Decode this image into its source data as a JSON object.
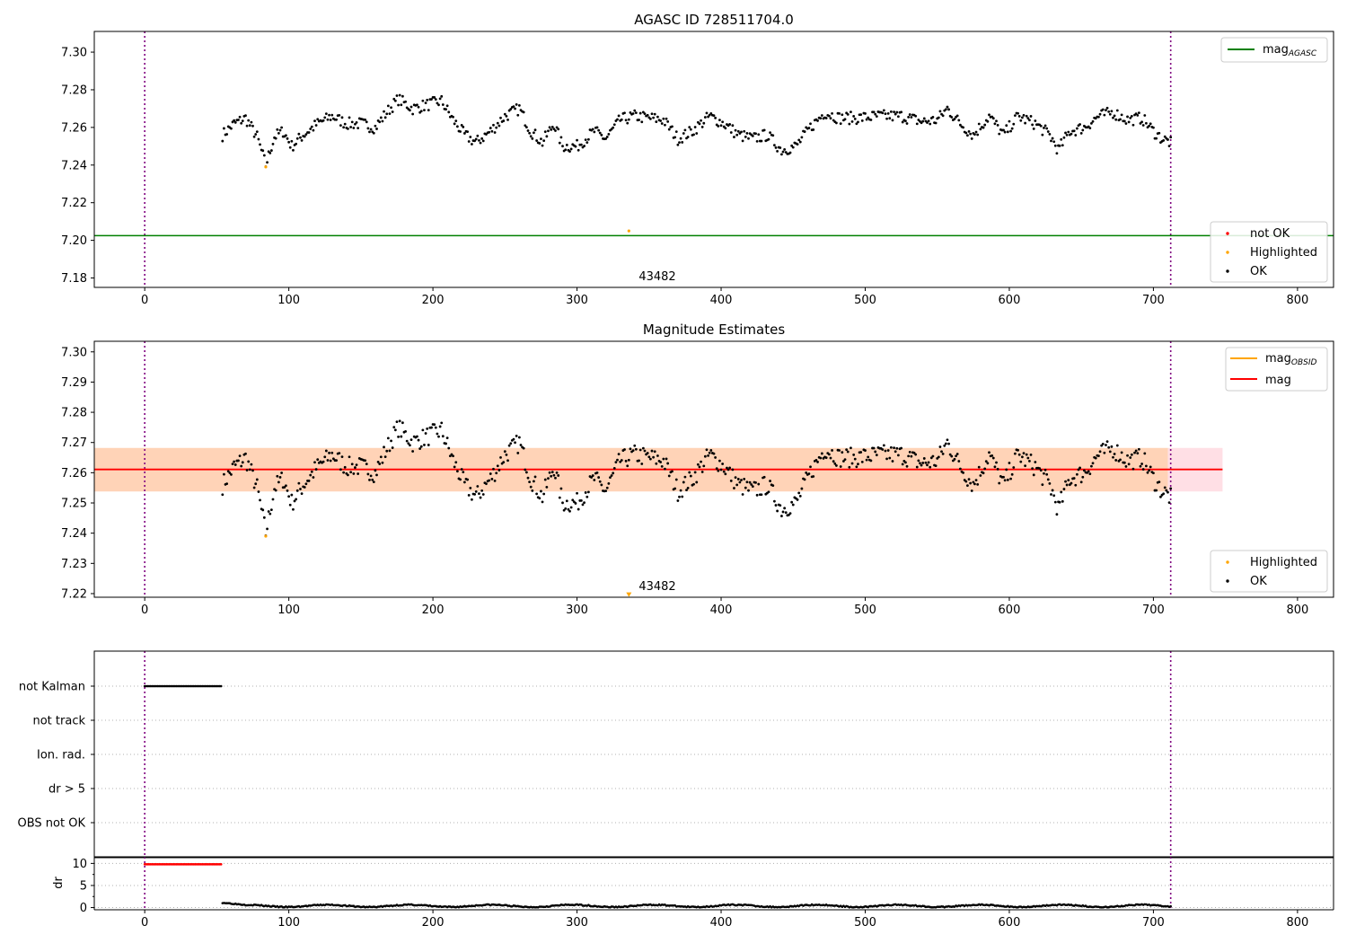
{
  "chart_data": [
    {
      "type": "scatter",
      "id": "top",
      "title": "AGASC ID 728511704.0",
      "xlim": [
        -35,
        825
      ],
      "ylim": [
        7.175,
        7.311
      ],
      "x_ticks": [
        0,
        100,
        200,
        300,
        400,
        500,
        600,
        700,
        800
      ],
      "y_ticks": [
        7.18,
        7.2,
        7.22,
        7.24,
        7.26,
        7.28,
        7.3
      ],
      "y_tick_labels": [
        "7.18",
        "7.20",
        "7.22",
        "7.24",
        "7.26",
        "7.28",
        "7.30"
      ],
      "vlines": [
        0,
        712
      ],
      "hline": {
        "name": "mag_AGASC",
        "y": 7.2025,
        "color": "#008000"
      },
      "line_legend": [
        {
          "label": "mag",
          "subscript": "AGASC",
          "color": "#008000"
        }
      ],
      "point_legend": [
        {
          "label": "not OK",
          "color": "#ff0000"
        },
        {
          "label": "Highlighted",
          "color": "#ffa500"
        },
        {
          "label": "OK",
          "color": "#000000"
        }
      ],
      "ok_series": {
        "x_start": 54,
        "x_end": 712,
        "step": 1
      },
      "highlighted_points": [
        {
          "x": 84,
          "y": 7.239
        },
        {
          "x": 336,
          "y": 7.205
        }
      ],
      "annotation": {
        "text": "43482",
        "x": 342,
        "y": 7.18
      }
    },
    {
      "type": "scatter",
      "id": "middle",
      "title": "Magnitude Estimates",
      "xlim": [
        -35,
        825
      ],
      "ylim": [
        7.2188,
        7.3035
      ],
      "x_ticks": [
        0,
        100,
        200,
        300,
        400,
        500,
        600,
        700,
        800
      ],
      "y_ticks": [
        7.22,
        7.23,
        7.24,
        7.25,
        7.26,
        7.27,
        7.28,
        7.29,
        7.3
      ],
      "y_tick_labels": [
        "7.22",
        "7.23",
        "7.24",
        "7.25",
        "7.26",
        "7.27",
        "7.28",
        "7.29",
        "7.30"
      ],
      "vlines": [
        0,
        712
      ],
      "mag_line": {
        "y": 7.2611,
        "x_range": [
          -35,
          748
        ],
        "color": "#ff0000"
      },
      "band_pink": {
        "y_range": [
          7.2538,
          7.2682
        ],
        "x_range": [
          -35,
          748
        ],
        "color": "#ffc0cb"
      },
      "band_orange": {
        "y_range": [
          7.2538,
          7.2682
        ],
        "x_range": [
          -35,
          710
        ],
        "color": "#ffa500"
      },
      "line_legend": [
        {
          "label": "mag",
          "subscript": "OBSID",
          "color": "#ffa500"
        },
        {
          "label": "mag",
          "subscript": "",
          "color": "#ff0000"
        }
      ],
      "point_legend": [
        {
          "label": "Highlighted",
          "color": "#ffa500"
        },
        {
          "label": "OK",
          "color": "#000000"
        }
      ],
      "highlighted_points": [
        {
          "x": 84,
          "y": 7.239
        }
      ],
      "offscale_marker": {
        "x": 336,
        "y": 7.2195,
        "color": "#ffa500"
      },
      "annotation": {
        "text": "43482",
        "x": 342,
        "y": 7.221
      }
    },
    {
      "type": "scatter",
      "id": "flags",
      "xlim": [
        -35,
        825
      ],
      "categories": [
        "not Kalman",
        "not track",
        "Ion. rad.",
        "dr > 5",
        "OBS not OK"
      ],
      "vlines": [
        0,
        712
      ],
      "not_kalman_range": [
        0,
        53
      ]
    },
    {
      "type": "scatter",
      "id": "dr",
      "xlim": [
        -35,
        825
      ],
      "ylim": [
        -0.5,
        11.5
      ],
      "y_ticks": [
        0,
        5,
        10
      ],
      "y_tick_labels": [
        "0",
        "5",
        "10"
      ],
      "x_ticks": [
        0,
        100,
        200,
        300,
        400,
        500,
        600,
        700,
        800
      ],
      "ylabel": "dr",
      "vlines": [
        0,
        712
      ],
      "red_range": [
        0,
        53
      ],
      "red_value": 9.8,
      "black_range": [
        54,
        712
      ]
    }
  ]
}
